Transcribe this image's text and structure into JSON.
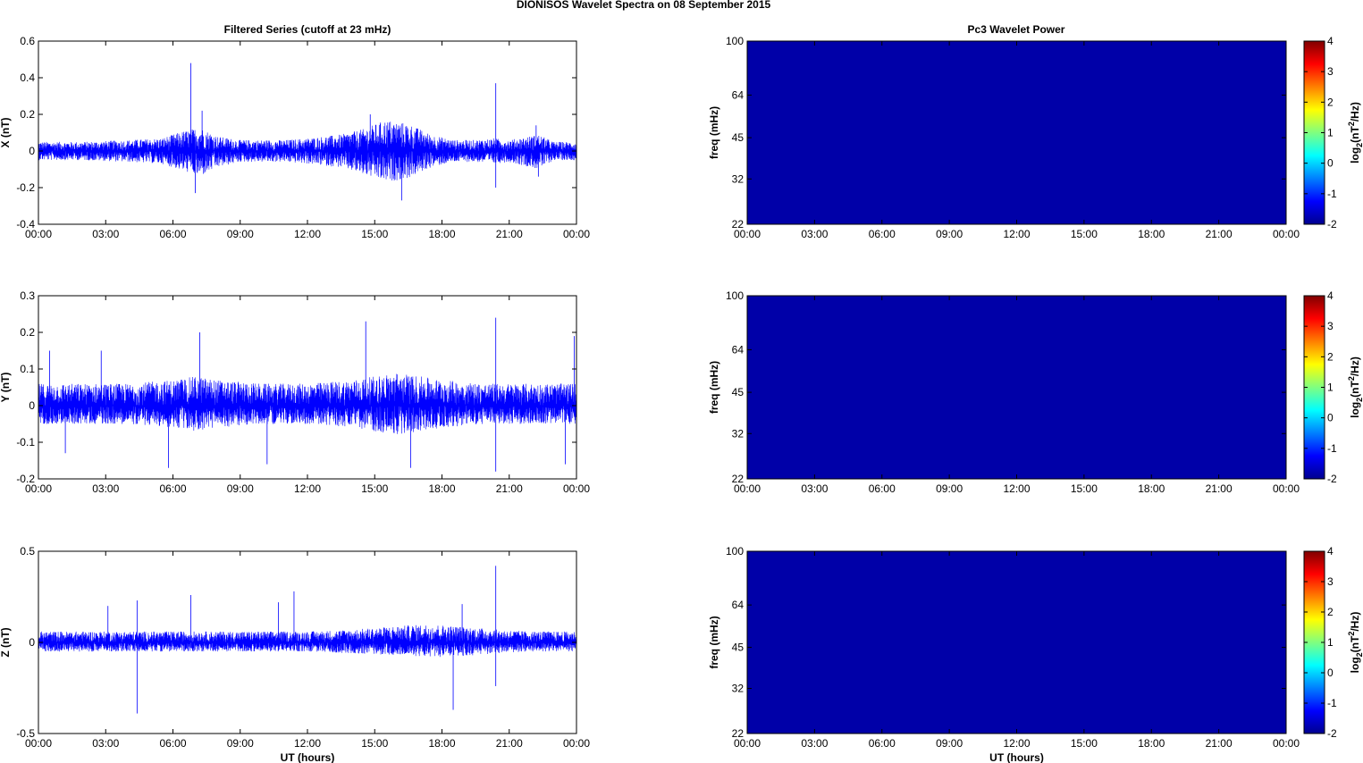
{
  "figure": {
    "title": "DIONISOS Wavelet Spectra on 08 September 2015",
    "left_title": "Filtered Series (cutoff at 23 mHz)",
    "right_title": "Pc3 Wavelet Power"
  },
  "colors": {
    "trace": "#0000ff",
    "spectrum_fill": "#0000a8"
  },
  "chart_data": [
    {
      "type": "line",
      "name": "X",
      "ylabel": "X (nT)",
      "xlabel": "",
      "ylim": [
        -0.4,
        0.6
      ],
      "yticks": [
        -0.4,
        -0.2,
        0,
        0.2,
        0.4,
        0.6
      ],
      "ytick_labels": [
        "-0.4",
        "-0.2",
        "0",
        "0.2",
        "0.4",
        "0.6"
      ],
      "xlim": [
        0,
        24
      ],
      "xticks": [
        0,
        3,
        6,
        9,
        12,
        15,
        18,
        21,
        24
      ],
      "xtick_labels": [
        "00:00",
        "03:00",
        "06:00",
        "09:00",
        "12:00",
        "15:00",
        "18:00",
        "21:00",
        "00:00"
      ],
      "envelope": {
        "hours": [
          0,
          2,
          4,
          5.5,
          6.5,
          7.2,
          8,
          9,
          11,
          12,
          13.5,
          14.5,
          15.5,
          16.5,
          17.5,
          18.5,
          19.5,
          20.3,
          21,
          22.3,
          23,
          24
        ],
        "upper": [
          0.05,
          0.05,
          0.06,
          0.07,
          0.11,
          0.13,
          0.08,
          0.06,
          0.06,
          0.07,
          0.09,
          0.12,
          0.17,
          0.15,
          0.09,
          0.06,
          0.06,
          0.07,
          0.06,
          0.09,
          0.05,
          0.05
        ],
        "lower": [
          -0.05,
          -0.05,
          -0.06,
          -0.07,
          -0.11,
          -0.14,
          -0.09,
          -0.06,
          -0.06,
          -0.07,
          -0.09,
          -0.13,
          -0.17,
          -0.15,
          -0.09,
          -0.06,
          -0.06,
          -0.07,
          -0.06,
          -0.1,
          -0.05,
          -0.05
        ]
      },
      "spikes": [
        [
          6.8,
          0.48
        ],
        [
          7.0,
          -0.23
        ],
        [
          7.3,
          0.22
        ],
        [
          14.8,
          0.2
        ],
        [
          16.2,
          -0.27
        ],
        [
          20.4,
          0.37
        ],
        [
          20.4,
          -0.2
        ],
        [
          22.2,
          0.14
        ],
        [
          22.3,
          -0.14
        ]
      ]
    },
    {
      "type": "line",
      "name": "Y",
      "ylabel": "Y (nT)",
      "xlabel": "",
      "ylim": [
        -0.2,
        0.3
      ],
      "yticks": [
        -0.2,
        -0.1,
        0,
        0.1,
        0.2,
        0.3
      ],
      "ytick_labels": [
        "-0.2",
        "-0.1",
        "0",
        "0.1",
        "0.2",
        "0.3"
      ],
      "xlim": [
        0,
        24
      ],
      "xticks": [
        0,
        3,
        6,
        9,
        12,
        15,
        18,
        21,
        24
      ],
      "xtick_labels": [
        "00:00",
        "03:00",
        "06:00",
        "09:00",
        "12:00",
        "15:00",
        "18:00",
        "21:00",
        "00:00"
      ],
      "envelope": {
        "hours": [
          0,
          2,
          4,
          6,
          7,
          8,
          10,
          12,
          14,
          15,
          16,
          17,
          18,
          20,
          22,
          24
        ],
        "upper": [
          0.06,
          0.06,
          0.06,
          0.07,
          0.08,
          0.07,
          0.06,
          0.06,
          0.07,
          0.08,
          0.09,
          0.08,
          0.07,
          0.06,
          0.06,
          0.06
        ],
        "lower": [
          -0.05,
          -0.05,
          -0.05,
          -0.06,
          -0.07,
          -0.06,
          -0.05,
          -0.05,
          -0.06,
          -0.07,
          -0.08,
          -0.07,
          -0.06,
          -0.05,
          -0.05,
          -0.05
        ]
      },
      "spikes": [
        [
          0.5,
          0.15
        ],
        [
          1.2,
          -0.13
        ],
        [
          2.8,
          0.15
        ],
        [
          5.8,
          -0.17
        ],
        [
          7.2,
          0.2
        ],
        [
          10.2,
          -0.16
        ],
        [
          14.6,
          0.23
        ],
        [
          16.6,
          -0.17
        ],
        [
          20.4,
          0.24
        ],
        [
          20.4,
          -0.18
        ],
        [
          23.5,
          -0.16
        ],
        [
          23.9,
          0.19
        ]
      ]
    },
    {
      "type": "line",
      "name": "Z",
      "ylabel": "Z (nT)",
      "xlabel": "UT (hours)",
      "ylim": [
        -0.5,
        0.5
      ],
      "yticks": [
        -0.5,
        0,
        0.5
      ],
      "ytick_labels": [
        "-0.5",
        "0",
        "0.5"
      ],
      "xlim": [
        0,
        24
      ],
      "xticks": [
        0,
        3,
        6,
        9,
        12,
        15,
        18,
        21,
        24
      ],
      "xtick_labels": [
        "00:00",
        "03:00",
        "06:00",
        "09:00",
        "12:00",
        "15:00",
        "18:00",
        "21:00",
        "00:00"
      ],
      "envelope": {
        "hours": [
          0,
          3,
          6,
          9,
          12,
          14,
          16,
          17.5,
          18.5,
          19.5,
          20.5,
          22,
          24
        ],
        "upper": [
          0.06,
          0.06,
          0.06,
          0.06,
          0.06,
          0.07,
          0.09,
          0.1,
          0.09,
          0.08,
          0.07,
          0.06,
          0.06
        ],
        "lower": [
          -0.05,
          -0.05,
          -0.05,
          -0.05,
          -0.05,
          -0.06,
          -0.07,
          -0.08,
          -0.08,
          -0.07,
          -0.06,
          -0.05,
          -0.05
        ]
      },
      "spikes": [
        [
          3.1,
          0.2
        ],
        [
          4.4,
          -0.39
        ],
        [
          4.4,
          0.23
        ],
        [
          6.8,
          0.26
        ],
        [
          10.7,
          0.22
        ],
        [
          11.4,
          0.28
        ],
        [
          18.5,
          -0.37
        ],
        [
          18.9,
          0.21
        ],
        [
          20.4,
          0.42
        ],
        [
          20.4,
          -0.24
        ]
      ]
    },
    {
      "type": "heatmap",
      "name": "X-spectrum",
      "ylabel": "freq (mHz)",
      "xlabel": "",
      "xlim": [
        0,
        24
      ],
      "xtick_labels": [
        "00:00",
        "03:00",
        "06:00",
        "09:00",
        "12:00",
        "15:00",
        "18:00",
        "21:00",
        "00:00"
      ],
      "yscale": "log",
      "ylim": [
        22,
        100
      ],
      "yticks": [
        22,
        32,
        45,
        64,
        100
      ],
      "ytick_labels": [
        "22",
        "32",
        "45",
        "64",
        "100"
      ],
      "value": -2,
      "colorbar": {
        "range": [
          -2,
          4
        ],
        "ticks": [
          "-2",
          "-1",
          "0",
          "1",
          "2",
          "3",
          "4"
        ],
        "label": "log2(nT2/Hz)"
      }
    },
    {
      "type": "heatmap",
      "name": "Y-spectrum",
      "ylabel": "freq (mHz)",
      "xlabel": "",
      "xlim": [
        0,
        24
      ],
      "xtick_labels": [
        "00:00",
        "03:00",
        "06:00",
        "09:00",
        "12:00",
        "15:00",
        "18:00",
        "21:00",
        "00:00"
      ],
      "yscale": "log",
      "ylim": [
        22,
        100
      ],
      "yticks": [
        22,
        32,
        45,
        64,
        100
      ],
      "ytick_labels": [
        "22",
        "32",
        "45",
        "64",
        "100"
      ],
      "value": -2,
      "colorbar": {
        "range": [
          -2,
          4
        ],
        "ticks": [
          "-2",
          "-1",
          "0",
          "1",
          "2",
          "3",
          "4"
        ],
        "label": "log2(nT2/Hz)"
      }
    },
    {
      "type": "heatmap",
      "name": "Z-spectrum",
      "ylabel": "freq (mHz)",
      "xlabel": "UT (hours)",
      "xlim": [
        0,
        24
      ],
      "xtick_labels": [
        "00:00",
        "03:00",
        "06:00",
        "09:00",
        "12:00",
        "15:00",
        "18:00",
        "21:00",
        "00:00"
      ],
      "yscale": "log",
      "ylim": [
        22,
        100
      ],
      "yticks": [
        22,
        32,
        45,
        64,
        100
      ],
      "ytick_labels": [
        "22",
        "32",
        "45",
        "64",
        "100"
      ],
      "value": -2,
      "colorbar": {
        "range": [
          -2,
          4
        ],
        "ticks": [
          "-2",
          "-1",
          "0",
          "1",
          "2",
          "3",
          "4"
        ],
        "label": "log2(nT2/Hz)"
      }
    }
  ]
}
